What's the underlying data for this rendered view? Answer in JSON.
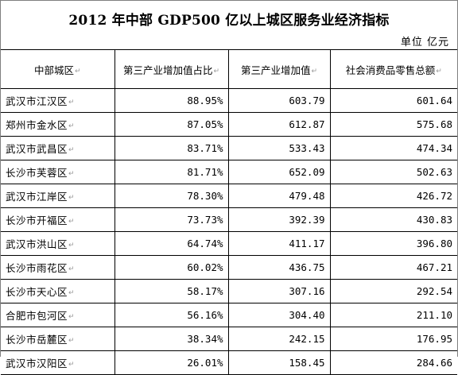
{
  "title": "2012 年中部 GDP500 亿以上城区服务业经济指标",
  "unit": "单位  亿元",
  "columns": [
    "中部城区",
    "第三产业增加值占比",
    "第三产业增加值",
    "社会消费品零售总额"
  ],
  "cell_mark": "↵",
  "rows": [
    {
      "district": "武汉市江汉区",
      "share": "88.95%",
      "tertiary_value": "603.79",
      "retail_sales": "601.64"
    },
    {
      "district": "郑州市金水区",
      "share": "87.05%",
      "tertiary_value": "612.87",
      "retail_sales": "575.68"
    },
    {
      "district": "武汉市武昌区",
      "share": "83.71%",
      "tertiary_value": "533.43",
      "retail_sales": "474.34"
    },
    {
      "district": "长沙市芙蓉区",
      "share": "81.71%",
      "tertiary_value": "652.09",
      "retail_sales": "502.63"
    },
    {
      "district": "武汉市江岸区",
      "share": "78.30%",
      "tertiary_value": "479.48",
      "retail_sales": "426.72"
    },
    {
      "district": "长沙市开福区",
      "share": "73.73%",
      "tertiary_value": "392.39",
      "retail_sales": "430.83"
    },
    {
      "district": "武汉市洪山区",
      "share": "64.74%",
      "tertiary_value": "411.17",
      "retail_sales": "396.80"
    },
    {
      "district": "长沙市雨花区",
      "share": "60.02%",
      "tertiary_value": "436.75",
      "retail_sales": "467.21"
    },
    {
      "district": "长沙市天心区",
      "share": "58.17%",
      "tertiary_value": "307.16",
      "retail_sales": "292.54"
    },
    {
      "district": "合肥市包河区",
      "share": "56.16%",
      "tertiary_value": "304.40",
      "retail_sales": "211.10"
    },
    {
      "district": "长沙市岳麓区",
      "share": "38.34%",
      "tertiary_value": "242.15",
      "retail_sales": "176.95"
    },
    {
      "district": "武汉市汉阳区",
      "share": "26.01%",
      "tertiary_value": "158.45",
      "retail_sales": "284.66"
    }
  ]
}
